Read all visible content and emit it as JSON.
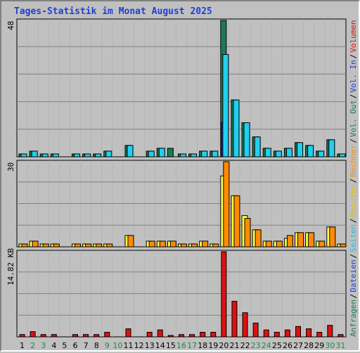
{
  "title": "Tages-Statistik im Monat August 2025",
  "colors": {
    "background": "#c0c0c0",
    "anfragen": "#1b7a5a",
    "dateien": "#1d3fd6",
    "seiten": "#20d0f0",
    "besuche": "#ffff40",
    "rechner": "#ff8c00",
    "volumen": "#e01010",
    "weekend_tick": "#1a8a40",
    "title": "#1f3fd6"
  },
  "legend": [
    {
      "text": "Anfragen",
      "color": "#1b7a5a"
    },
    {
      "text": "/",
      "color": "#000000"
    },
    {
      "text": "Dateien",
      "color": "#1d3fd6"
    },
    {
      "text": "/",
      "color": "#000000"
    },
    {
      "text": "Seiten",
      "color": "#20c0e0"
    },
    {
      "text": "/",
      "color": "#000000"
    },
    {
      "text": "Besuche",
      "color": "#e0c000"
    },
    {
      "text": "/",
      "color": "#000000"
    },
    {
      "text": "Rechner",
      "color": "#ff8c00"
    },
    {
      "text": "/",
      "color": "#000000"
    },
    {
      "text": "Vol. Out",
      "color": "#1b7a5a"
    },
    {
      "text": "/",
      "color": "#000000"
    },
    {
      "text": "Vol. In",
      "color": "#1d3fd6"
    },
    {
      "text": "/",
      "color": "#000000"
    },
    {
      "text": "Volumen",
      "color": "#e01010"
    }
  ],
  "chart_data": [
    {
      "type": "bar",
      "panel": "hits",
      "ymax_label": "48",
      "ylim": [
        0,
        48
      ],
      "x": [
        1,
        2,
        3,
        4,
        5,
        6,
        7,
        8,
        9,
        10,
        11,
        12,
        13,
        14,
        15,
        16,
        17,
        18,
        19,
        20,
        21,
        22,
        23,
        24,
        25,
        26,
        27,
        28,
        29,
        30,
        31
      ],
      "series": [
        {
          "name": "Anfragen",
          "values": [
            1,
            2,
            1,
            1,
            0,
            1,
            1,
            1,
            2,
            0,
            4,
            0,
            2,
            3,
            3,
            1,
            1,
            2,
            2,
            48,
            20,
            12,
            7,
            3,
            2,
            3,
            5,
            4,
            2,
            6,
            1
          ]
        },
        {
          "name": "Dateien",
          "values": [
            0,
            0,
            0,
            0,
            0,
            0,
            0,
            0,
            0,
            0,
            0,
            0,
            0,
            0,
            0,
            0,
            0,
            0,
            0,
            12,
            0,
            0,
            0,
            0,
            0,
            0,
            0,
            0,
            0,
            0,
            0
          ]
        },
        {
          "name": "Seiten",
          "values": [
            1,
            2,
            1,
            1,
            0,
            1,
            1,
            1,
            2,
            0,
            4,
            0,
            2,
            3,
            0,
            1,
            1,
            2,
            2,
            36,
            20,
            12,
            7,
            3,
            2,
            3,
            5,
            4,
            2,
            6,
            1
          ]
        }
      ]
    },
    {
      "type": "bar",
      "panel": "visits",
      "ymax_label": "30",
      "ylim": [
        0,
        30
      ],
      "x": [
        1,
        2,
        3,
        4,
        5,
        6,
        7,
        8,
        9,
        10,
        11,
        12,
        13,
        14,
        15,
        16,
        17,
        18,
        19,
        20,
        21,
        22,
        23,
        24,
        25,
        26,
        27,
        28,
        29,
        30,
        31
      ],
      "series": [
        {
          "name": "Besuche",
          "values": [
            1,
            2,
            1,
            1,
            0,
            1,
            1,
            1,
            1,
            0,
            4,
            0,
            2,
            2,
            2,
            1,
            1,
            2,
            1,
            25,
            18,
            11,
            6,
            2,
            2,
            3,
            5,
            5,
            2,
            7,
            1
          ]
        },
        {
          "name": "Rechner",
          "values": [
            1,
            2,
            1,
            1,
            0,
            1,
            1,
            1,
            1,
            0,
            4,
            0,
            2,
            2,
            2,
            1,
            1,
            2,
            1,
            30,
            18,
            10,
            6,
            2,
            2,
            4,
            5,
            5,
            2,
            7,
            1
          ]
        }
      ]
    },
    {
      "type": "bar",
      "panel": "volume",
      "ymax_label": "14.82 KB",
      "ylim": [
        0,
        14.82
      ],
      "x": [
        1,
        2,
        3,
        4,
        5,
        6,
        7,
        8,
        9,
        10,
        11,
        12,
        13,
        14,
        15,
        16,
        17,
        18,
        19,
        20,
        21,
        22,
        23,
        24,
        25,
        26,
        27,
        28,
        29,
        30,
        31
      ],
      "series": [
        {
          "name": "Volumen",
          "values": [
            0.4,
            0.9,
            0.4,
            0.4,
            0,
            0.4,
            0.4,
            0.4,
            0.8,
            0,
            1.4,
            0,
            0.8,
            1.2,
            0.2,
            0.4,
            0.4,
            0.8,
            0.8,
            14.82,
            6.2,
            4.2,
            2.4,
            1.2,
            0.8,
            1.2,
            1.8,
            1.4,
            0.8,
            2.0,
            0.4
          ]
        }
      ]
    }
  ],
  "weekend_days": [
    2,
    3,
    9,
    10,
    16,
    17,
    23,
    24,
    30,
    31
  ]
}
